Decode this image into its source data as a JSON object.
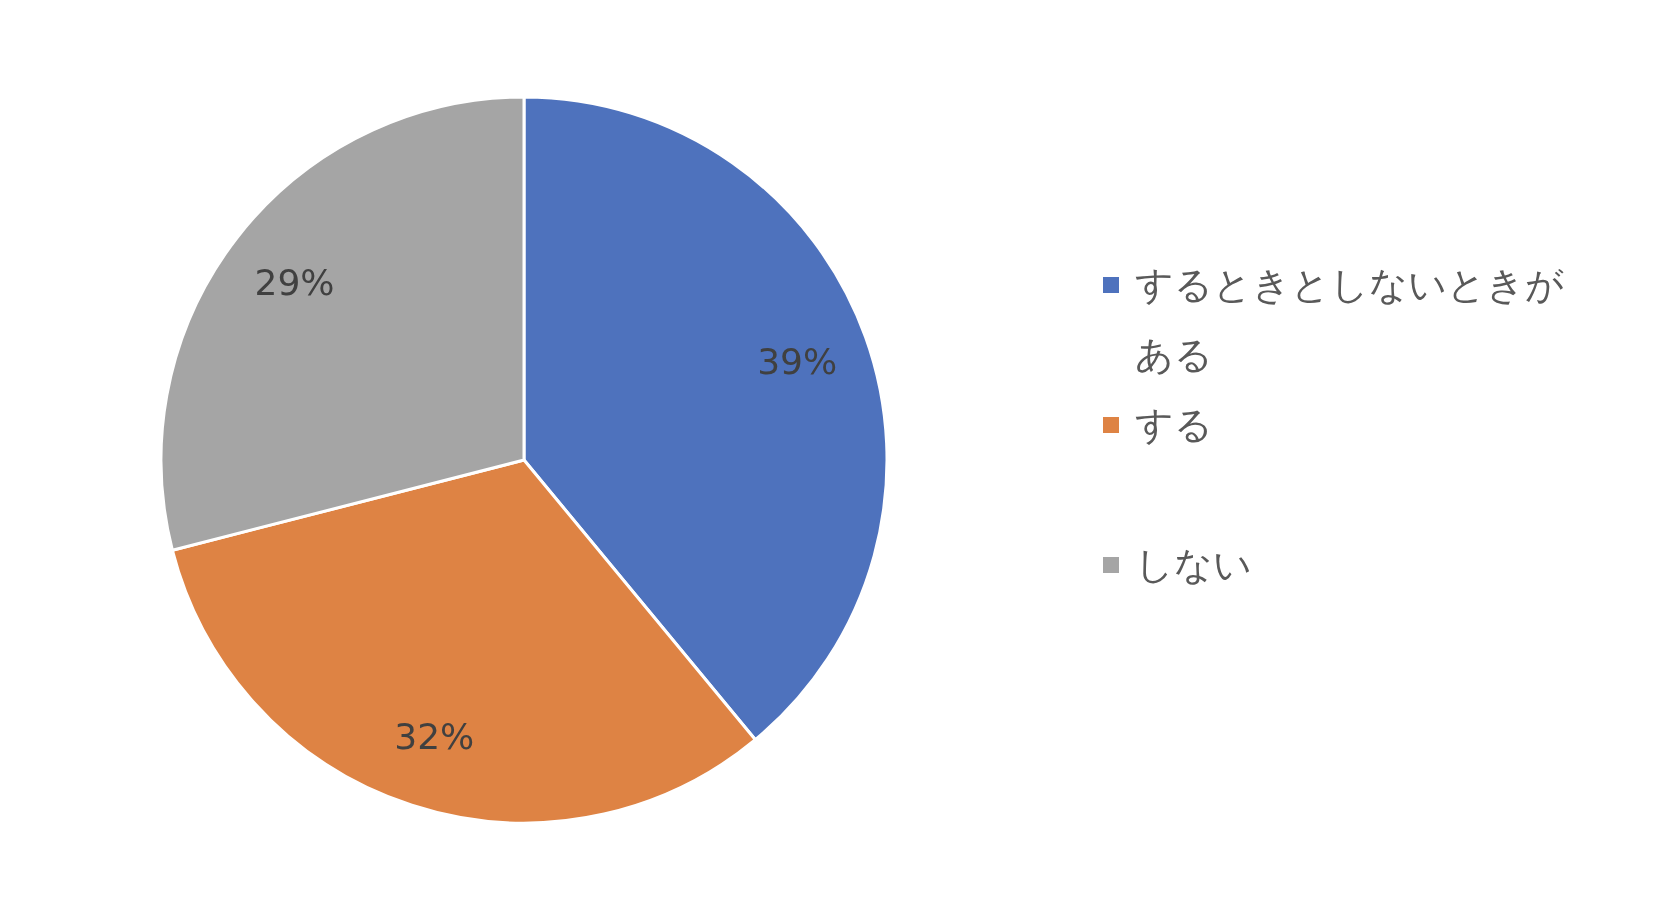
{
  "chart_data": {
    "type": "pie",
    "categories": [
      "するときとしないときがある",
      "する",
      "しない"
    ],
    "values": [
      39,
      32,
      29
    ],
    "colors": [
      "#4e72bd",
      "#de8344",
      "#a5a5a5"
    ],
    "value_labels": [
      "39%",
      "32%",
      "29%"
    ],
    "legend": "right"
  }
}
